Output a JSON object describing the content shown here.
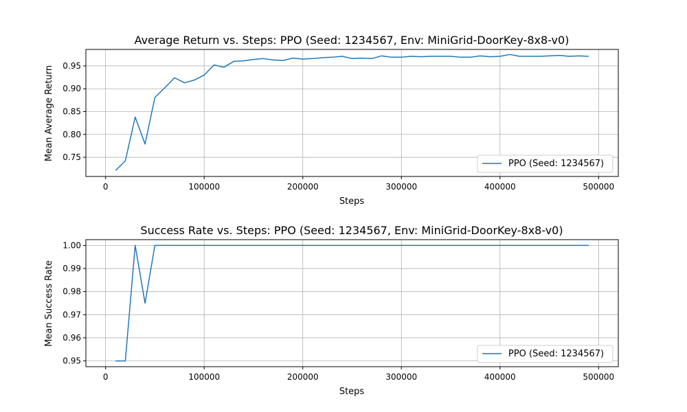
{
  "chart_data": [
    {
      "type": "line",
      "title": "Average Return vs. Steps: PPO (Seed: 1234567, Env: MiniGrid-DoorKey-8x8-v0)",
      "xlabel": "Steps",
      "ylabel": "Mean Average Return",
      "xlim": [
        -20000,
        520000
      ],
      "ylim": [
        0.708,
        0.986
      ],
      "xticks": [
        0,
        100000,
        200000,
        300000,
        400000,
        500000
      ],
      "yticks": [
        0.75,
        0.8,
        0.85,
        0.9,
        0.95
      ],
      "xtick_labels": [
        "0",
        "100000",
        "200000",
        "300000",
        "400000",
        "500000"
      ],
      "ytick_labels": [
        "0.75",
        "0.80",
        "0.85",
        "0.90",
        "0.95"
      ],
      "grid": true,
      "legend_position": "lower-right",
      "color": "#1f77b4",
      "series": [
        {
          "name": "PPO (Seed: 1234567)",
          "x": [
            10000,
            20000,
            30000,
            40000,
            50000,
            60000,
            70000,
            80000,
            90000,
            100000,
            110000,
            120000,
            130000,
            140000,
            150000,
            160000,
            170000,
            180000,
            190000,
            200000,
            210000,
            220000,
            230000,
            240000,
            250000,
            260000,
            270000,
            280000,
            290000,
            300000,
            310000,
            320000,
            330000,
            340000,
            350000,
            360000,
            370000,
            380000,
            390000,
            400000,
            410000,
            420000,
            430000,
            440000,
            450000,
            460000,
            470000,
            480000,
            490000
          ],
          "values": [
            0.721,
            0.742,
            0.838,
            0.779,
            0.881,
            0.902,
            0.924,
            0.913,
            0.919,
            0.93,
            0.952,
            0.947,
            0.96,
            0.961,
            0.964,
            0.966,
            0.963,
            0.962,
            0.967,
            0.965,
            0.966,
            0.968,
            0.969,
            0.971,
            0.966,
            0.967,
            0.966,
            0.972,
            0.969,
            0.969,
            0.971,
            0.97,
            0.971,
            0.971,
            0.971,
            0.969,
            0.969,
            0.972,
            0.97,
            0.971,
            0.975,
            0.971,
            0.971,
            0.971,
            0.972,
            0.973,
            0.971,
            0.972,
            0.971
          ]
        }
      ]
    },
    {
      "type": "line",
      "title": "Success Rate vs. Steps: PPO (Seed: 1234567, Env: MiniGrid-DoorKey-8x8-v0)",
      "xlabel": "Steps",
      "ylabel": "Mean Success Rate",
      "xlim": [
        -20000,
        520000
      ],
      "ylim": [
        0.9475,
        1.0025
      ],
      "xticks": [
        0,
        100000,
        200000,
        300000,
        400000,
        500000
      ],
      "yticks": [
        0.95,
        0.96,
        0.97,
        0.98,
        0.99,
        1.0
      ],
      "xtick_labels": [
        "0",
        "100000",
        "200000",
        "300000",
        "400000",
        "500000"
      ],
      "ytick_labels": [
        "0.95",
        "0.96",
        "0.97",
        "0.98",
        "0.99",
        "1.00"
      ],
      "grid": true,
      "legend_position": "lower-right",
      "color": "#1f77b4",
      "series": [
        {
          "name": "PPO (Seed: 1234567)",
          "x": [
            10000,
            20000,
            30000,
            40000,
            50000,
            60000,
            70000,
            80000,
            90000,
            100000,
            110000,
            120000,
            130000,
            140000,
            150000,
            160000,
            170000,
            180000,
            190000,
            200000,
            210000,
            220000,
            230000,
            240000,
            250000,
            260000,
            270000,
            280000,
            290000,
            300000,
            310000,
            320000,
            330000,
            340000,
            350000,
            360000,
            370000,
            380000,
            390000,
            400000,
            410000,
            420000,
            430000,
            440000,
            450000,
            460000,
            470000,
            480000,
            490000
          ],
          "values": [
            0.95,
            0.95,
            1.0,
            0.975,
            1.0,
            1.0,
            1.0,
            1.0,
            1.0,
            1.0,
            1.0,
            1.0,
            1.0,
            1.0,
            1.0,
            1.0,
            1.0,
            1.0,
            1.0,
            1.0,
            1.0,
            1.0,
            1.0,
            1.0,
            1.0,
            1.0,
            1.0,
            1.0,
            1.0,
            1.0,
            1.0,
            1.0,
            1.0,
            1.0,
            1.0,
            1.0,
            1.0,
            1.0,
            1.0,
            1.0,
            1.0,
            1.0,
            1.0,
            1.0,
            1.0,
            1.0,
            1.0,
            1.0,
            1.0
          ]
        }
      ]
    }
  ]
}
